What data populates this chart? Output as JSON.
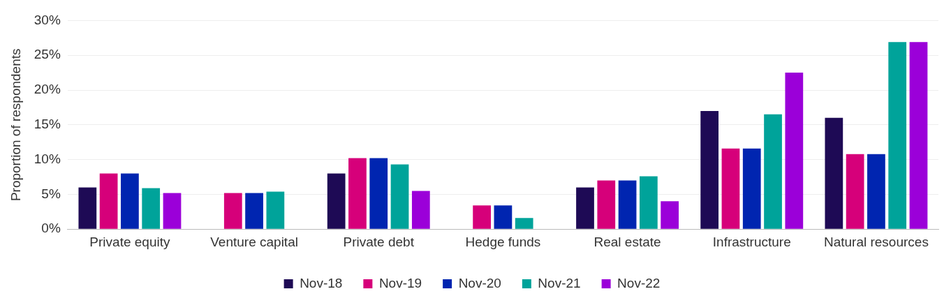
{
  "chart_data": {
    "type": "bar",
    "ylabel": "Proportion of respondents",
    "categories": [
      "Private equity",
      "Venture capital",
      "Private debt",
      "Hedge funds",
      "Real estate",
      "Infrastructure",
      "Natural resources"
    ],
    "series": [
      {
        "name": "Nov-18",
        "color": "#1e0a55",
        "values": [
          6.0,
          null,
          8.0,
          null,
          6.0,
          17.0,
          16.0
        ]
      },
      {
        "name": "Nov-19",
        "color": "#d6007a",
        "values": [
          8.0,
          5.2,
          10.2,
          3.4,
          7.0,
          11.6,
          10.8
        ]
      },
      {
        "name": "Nov-20",
        "color": "#0025b0",
        "values": [
          8.0,
          5.2,
          10.2,
          3.4,
          7.0,
          11.6,
          10.8
        ]
      },
      {
        "name": "Nov-21",
        "color": "#00a39a",
        "values": [
          5.9,
          5.4,
          9.3,
          1.6,
          7.6,
          16.5,
          26.9
        ]
      },
      {
        "name": "Nov-22",
        "color": "#9b00d9",
        "values": [
          5.2,
          null,
          5.5,
          null,
          4.0,
          22.5,
          26.9
        ]
      }
    ],
    "ylim": [
      0,
      30
    ],
    "yticks": [
      {
        "value": 0,
        "label": "0%"
      },
      {
        "value": 5,
        "label": "5%"
      },
      {
        "value": 10,
        "label": "10%"
      },
      {
        "value": 15,
        "label": "15%"
      },
      {
        "value": 20,
        "label": "20%"
      },
      {
        "value": 25,
        "label": "25%"
      },
      {
        "value": 30,
        "label": "30%"
      }
    ],
    "grid": "y",
    "legend": "bottom"
  }
}
